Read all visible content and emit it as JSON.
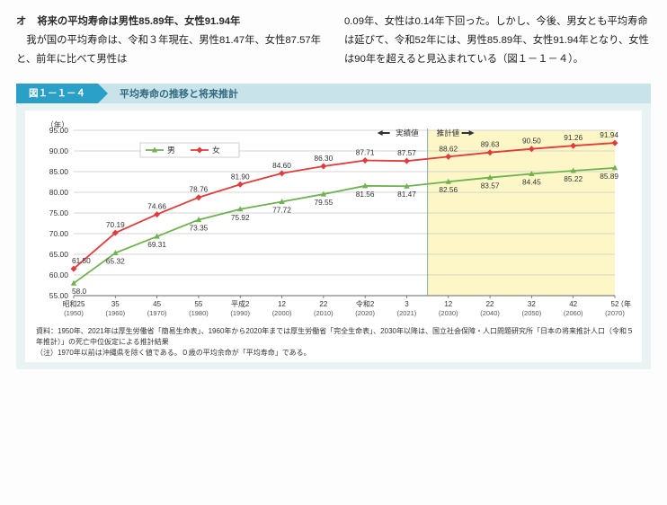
{
  "heading": {
    "marker": "オ",
    "text": "将来の平均寿命は男性85.89年、女性91.94年"
  },
  "paragraphs_col1": [
    "我が国の平均寿命は、令和３年現在、男性81.47年、女性87.57年と、前年に比べて男性は"
  ],
  "paragraphs_col2": [
    "0.09年、女性は0.14年下回った。しかし、今後、男女とも平均寿命は延びて、令和52年には、男性85.89年、女性91.94年となり、女性は90年を超えると見込まれている（図１－１－４）。"
  ],
  "figure": {
    "number": "図１－１－４",
    "title": "平均寿命の推移と将来推計",
    "y_axis_label": "（年）",
    "x_axis_label": "（年）",
    "legend": {
      "male": "男",
      "female": "女",
      "actual": "実績値",
      "forecast": "推計値"
    },
    "ylim": [
      55.0,
      95.0
    ],
    "ytick_step": 5.0,
    "x_labels_top": [
      "昭和25",
      "35",
      "45",
      "55",
      "平成2",
      "12",
      "22",
      "令和2",
      "3",
      "12",
      "22",
      "32",
      "42",
      "52"
    ],
    "x_labels_bot": [
      "(1950)",
      "(1960)",
      "(1970)",
      "(1980)",
      "(1990)",
      "(2000)",
      "(2010)",
      "(2020)",
      "(2021)",
      "(2030)",
      "(2040)",
      "(2050)",
      "(2060)",
      "(2070)"
    ],
    "forecast_start_index": 9,
    "male": {
      "color": "#6fb24f",
      "values": [
        58.0,
        65.32,
        69.31,
        73.35,
        75.92,
        77.72,
        79.55,
        81.56,
        81.47,
        82.56,
        83.57,
        84.45,
        85.22,
        85.89
      ]
    },
    "female": {
      "color": "#e23b3b",
      "values": [
        61.5,
        70.19,
        74.66,
        78.76,
        81.9,
        84.6,
        86.3,
        87.71,
        87.57,
        88.62,
        89.63,
        90.5,
        91.26,
        91.94
      ]
    },
    "bg_plot": "#ffffff",
    "bg_forecast": "#fdf7c8",
    "grid_color": "#c8c8c8",
    "marker_male": "triangle",
    "marker_female": "diamond",
    "notes": [
      "資料：1950年、2021年は厚生労働省「簡易生命表」、1960年から2020年までは厚生労働省「完全生命表」、2030年以降は、国立社会保障・人口問題研究所「日本の将来推計人口（令和５年推計）」の死亡中位仮定による推計結果",
      "（注）1970年以前は沖縄県を除く値である。０歳の平均余命が「平均寿命」である。"
    ]
  }
}
